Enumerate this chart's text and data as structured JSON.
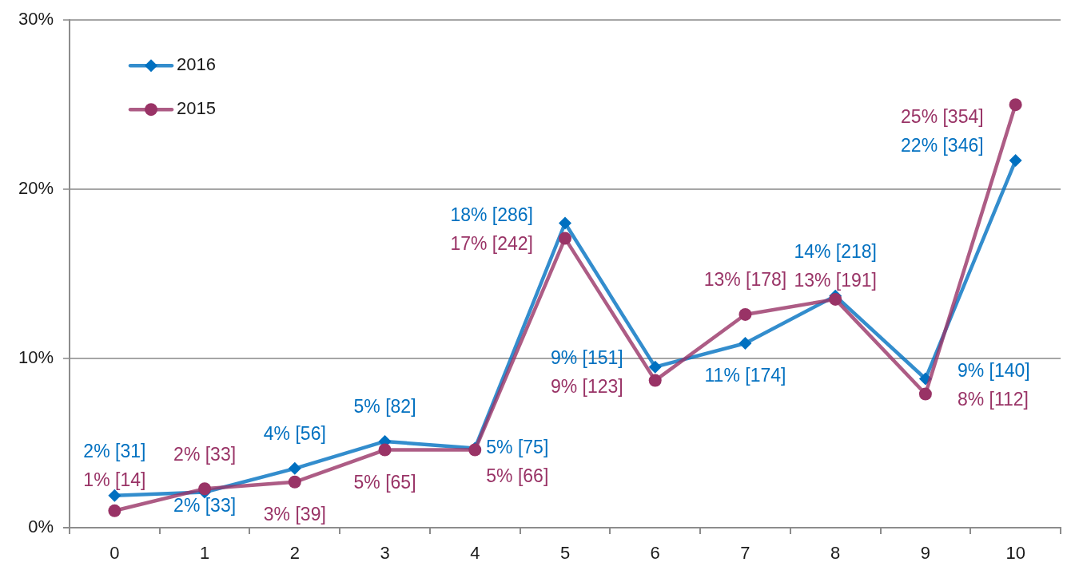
{
  "chart_data": {
    "type": "line",
    "categories": [
      "0",
      "1",
      "2",
      "3",
      "4",
      "5",
      "6",
      "7",
      "8",
      "9",
      "10"
    ],
    "ylim": [
      0,
      30
    ],
    "yticks": [
      {
        "value": 0,
        "label": "0%"
      },
      {
        "value": 10,
        "label": "10%"
      },
      {
        "value": 20,
        "label": "20%"
      },
      {
        "value": 30,
        "label": "30%"
      }
    ],
    "grid": "y",
    "legend": "top left",
    "series": [
      {
        "name": "2016",
        "color": "#0070c0",
        "marker": "diamond",
        "values": [
          1.9,
          2.1,
          3.5,
          5.1,
          4.7,
          18.0,
          9.5,
          10.9,
          13.7,
          8.8,
          21.7
        ],
        "value_labels": [
          "2% [31]",
          "2% [33]",
          "4% [56]",
          "5% [82]",
          "5% [75]",
          "18% [286]",
          "9% [151]",
          "11% [174]",
          "14% [218]",
          "9% [140]",
          "22% [346]"
        ]
      },
      {
        "name": "2015",
        "color": "#993366",
        "marker": "circle",
        "values": [
          1.0,
          2.3,
          2.7,
          4.6,
          4.6,
          17.1,
          8.7,
          12.6,
          13.5,
          7.9,
          25.0
        ],
        "value_labels": [
          "1% [14]",
          "2% [33]",
          "3% [39]",
          "5% [65]",
          "5% [66]",
          "17% [242]",
          "9% [123]",
          "13% [178]",
          "13% [191]",
          "8% [112]",
          "25% [354]"
        ]
      }
    ]
  }
}
